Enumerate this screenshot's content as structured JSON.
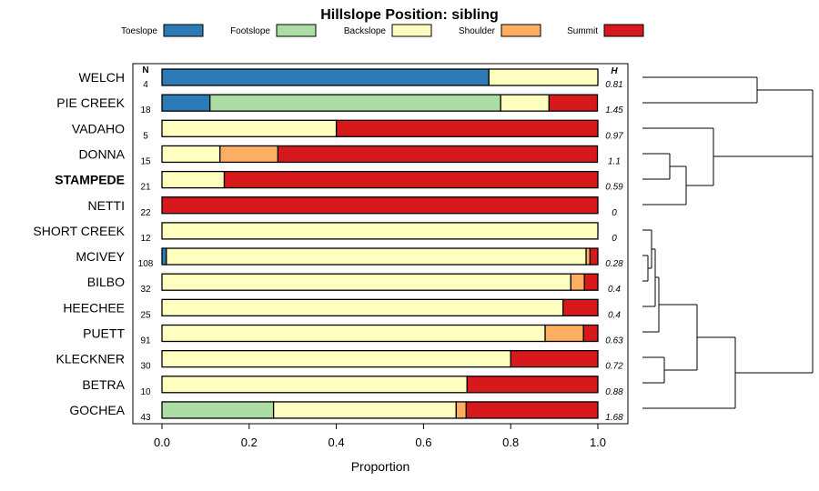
{
  "chart_data": {
    "type": "bar",
    "stacked": true,
    "orientation": "horizontal",
    "title": "Hillslope Position: sibling",
    "xlabel": "Proportion",
    "xlim": [
      0,
      1
    ],
    "xticks": [
      "0.0",
      "0.2",
      "0.4",
      "0.6",
      "0.8",
      "1.0"
    ],
    "n_header": "N",
    "h_header": "H",
    "legend_position": "top",
    "series": [
      {
        "name": "Toeslope",
        "color": "#2C7BB6"
      },
      {
        "name": "Footslope",
        "color": "#ABDDA4"
      },
      {
        "name": "Backslope",
        "color": "#FFFFBF"
      },
      {
        "name": "Shoulder",
        "color": "#FDAE61"
      },
      {
        "name": "Summit",
        "color": "#D7191C"
      }
    ],
    "categories": [
      {
        "label": "WELCH",
        "n": "4",
        "h": "0.81",
        "values": [
          0.75,
          0,
          0.25,
          0,
          0
        ]
      },
      {
        "label": "PIE CREEK",
        "n": "18",
        "h": "1.45",
        "values": [
          0.11,
          0.667,
          0.111,
          0,
          0.111
        ]
      },
      {
        "label": "VADAHO",
        "n": "5",
        "h": "0.97",
        "values": [
          0,
          0,
          0.4,
          0,
          0.6
        ]
      },
      {
        "label": "DONNA",
        "n": "15",
        "h": "1.1",
        "values": [
          0,
          0,
          0.133,
          0.133,
          0.733
        ]
      },
      {
        "label": "STAMPEDE",
        "n": "21",
        "h": "0.59",
        "bold": true,
        "values": [
          0,
          0,
          0.143,
          0,
          0.857
        ]
      },
      {
        "label": "NETTI",
        "n": "22",
        "h": "0",
        "values": [
          0,
          0,
          0,
          0,
          1
        ]
      },
      {
        "label": "SHORT CREEK",
        "n": "12",
        "h": "0",
        "values": [
          0,
          0,
          1,
          0,
          0
        ]
      },
      {
        "label": "MCIVEY",
        "n": "108",
        "h": "0.28",
        "values": [
          0.01,
          0,
          0.963,
          0.009,
          0.018
        ]
      },
      {
        "label": "BILBO",
        "n": "32",
        "h": "0.4",
        "values": [
          0,
          0,
          0.938,
          0.031,
          0.031
        ]
      },
      {
        "label": "HEECHEE",
        "n": "25",
        "h": "0.4",
        "values": [
          0,
          0,
          0.92,
          0,
          0.08
        ]
      },
      {
        "label": "PUETT",
        "n": "91",
        "h": "0.63",
        "values": [
          0,
          0,
          0.879,
          0.088,
          0.033
        ]
      },
      {
        "label": "KLECKNER",
        "n": "30",
        "h": "0.72",
        "values": [
          0,
          0,
          0.8,
          0,
          0.2
        ]
      },
      {
        "label": "BETRA",
        "n": "10",
        "h": "0.88",
        "values": [
          0,
          0,
          0.7,
          0,
          0.3
        ]
      },
      {
        "label": "GOCHEA",
        "n": "43",
        "h": "1.68",
        "values": [
          0,
          0.256,
          0.419,
          0.023,
          0.302
        ]
      }
    ],
    "dendrogram": {
      "leaf_order": [
        "WELCH",
        "PIE CREEK",
        "VADAHO",
        "DONNA",
        "STAMPEDE",
        "NETTI",
        "SHORT CREEK",
        "MCIVEY",
        "BILBO",
        "HEECHEE",
        "PUETT",
        "KLECKNER",
        "BETRA",
        "GOCHEA"
      ]
    }
  }
}
